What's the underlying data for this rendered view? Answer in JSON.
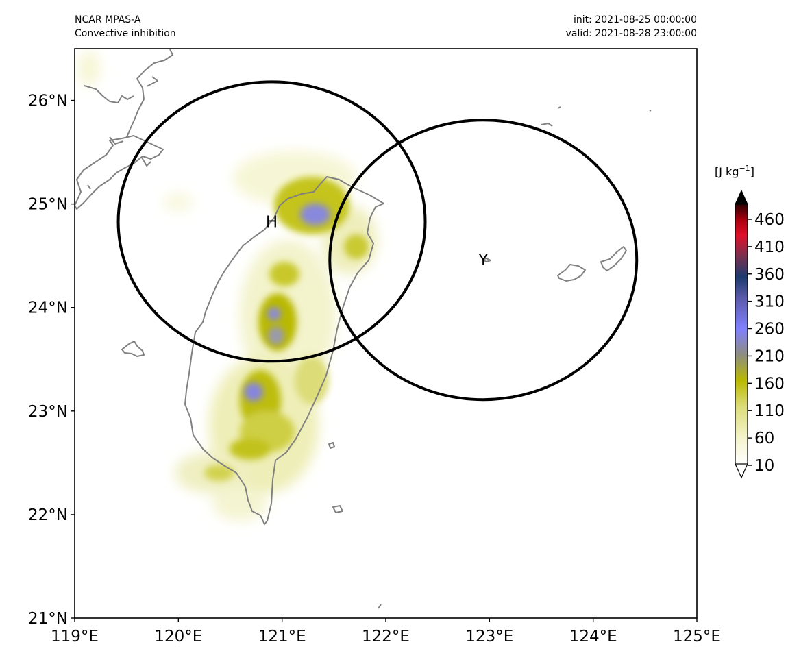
{
  "header": {
    "model": "NCAR MPAS-A",
    "field": "Convective inhibition",
    "init": "init: 2021-08-25 00:00:00",
    "valid": "valid: 2021-08-28 23:00:00"
  },
  "map": {
    "lon_range": [
      119,
      125
    ],
    "lat_range": [
      21,
      26.5
    ],
    "lon_ticks": [
      {
        "value": 119,
        "label": "119°E"
      },
      {
        "value": 120,
        "label": "120°E"
      },
      {
        "value": 121,
        "label": "121°E"
      },
      {
        "value": 122,
        "label": "122°E"
      },
      {
        "value": 123,
        "label": "123°E"
      },
      {
        "value": 124,
        "label": "124°E"
      },
      {
        "value": 125,
        "label": "125°E"
      }
    ],
    "lat_ticks": [
      {
        "value": 21,
        "label": "21°N"
      },
      {
        "value": 22,
        "label": "22°N"
      },
      {
        "value": 23,
        "label": "23°N"
      },
      {
        "value": 24,
        "label": "24°N"
      },
      {
        "value": 25,
        "label": "25°N"
      },
      {
        "value": 26,
        "label": "26°N"
      }
    ],
    "coastline_color": "#808080",
    "circles": [
      {
        "label": "H",
        "center_lon": 120.9,
        "center_lat": 24.83,
        "radius_lon": 1.48,
        "radius_lat": 1.35
      },
      {
        "label": "Y",
        "center_lon": 122.94,
        "center_lat": 24.46,
        "radius_lon": 1.48,
        "radius_lat": 1.35
      }
    ]
  },
  "colorbar": {
    "units_prefix": "[J kg",
    "units_exp": "−1",
    "units_suffix": "]",
    "ticks": [
      "10",
      "60",
      "110",
      "160",
      "210",
      "260",
      "310",
      "360",
      "410",
      "460"
    ],
    "colors": [
      "#fffff5",
      "#f2f2b8",
      "#d9d968",
      "#b7b700",
      "#8c8c6e",
      "#8888dd",
      "#7777ff",
      "#5555aa",
      "#223377",
      "#cc2233",
      "#ee1122",
      "#660000",
      "#000000"
    ]
  }
}
